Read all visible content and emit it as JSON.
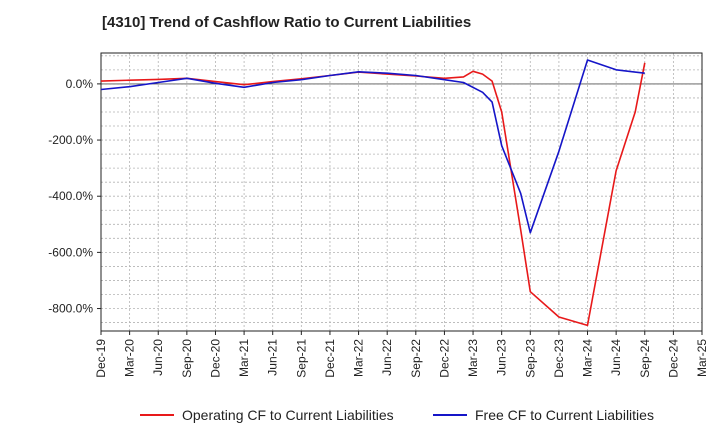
{
  "chart_data": {
    "type": "line",
    "title": "[4310]  Trend of Cashflow Ratio to Current Liabilities",
    "xlabel": "",
    "ylabel": "",
    "x_ticks": [
      "Dec-19",
      "Mar-20",
      "Jun-20",
      "Sep-20",
      "Dec-20",
      "Mar-21",
      "Jun-21",
      "Sep-21",
      "Dec-21",
      "Mar-22",
      "Jun-22",
      "Sep-22",
      "Dec-22",
      "Mar-23",
      "Jun-23",
      "Sep-23",
      "Dec-23",
      "Mar-24",
      "Jun-24",
      "Sep-24",
      "Dec-24",
      "Mar-25"
    ],
    "y_ticks": [
      {
        "value": 0,
        "label": "0.0%"
      },
      {
        "value": -200,
        "label": "-200.0%"
      },
      {
        "value": -400,
        "label": "-400.0%"
      },
      {
        "value": -600,
        "label": "-600.0%"
      },
      {
        "value": -800,
        "label": "-800.0%"
      }
    ],
    "ylim": [
      -880,
      110
    ],
    "grid": true,
    "legend_position": "bottom",
    "series": [
      {
        "name": "Operating CF to Current Liabilities",
        "color": "#e8191a",
        "points": [
          [
            "Dec-19",
            10
          ],
          [
            "Mar-20",
            13
          ],
          [
            "Jun-20",
            16
          ],
          [
            "Sep-20",
            20
          ],
          [
            "Dec-20",
            8
          ],
          [
            "Mar-21",
            -3
          ],
          [
            "Jun-21",
            8
          ],
          [
            "Sep-21",
            18
          ],
          [
            "Dec-21",
            30
          ],
          [
            "Mar-22",
            42
          ],
          [
            "Jun-22",
            35
          ],
          [
            "Sep-22",
            28
          ],
          [
            "Dec-22",
            20
          ],
          [
            "Feb-23",
            25
          ],
          [
            "Mar-23",
            45
          ],
          [
            "Apr-23",
            35
          ],
          [
            "May-23",
            10
          ],
          [
            "Jun-23",
            -100
          ],
          [
            "Aug-23",
            -520
          ],
          [
            "Sep-23",
            -740
          ],
          [
            "Dec-23",
            -830
          ],
          [
            "Mar-24",
            -860
          ],
          [
            "Jun-24",
            -310
          ],
          [
            "Aug-24",
            -100
          ],
          [
            "Sep-24",
            75
          ]
        ]
      },
      {
        "name": "Free CF to Current Liabilities",
        "color": "#1515c8",
        "points": [
          [
            "Dec-19",
            -20
          ],
          [
            "Mar-20",
            -10
          ],
          [
            "Jun-20",
            5
          ],
          [
            "Sep-20",
            20
          ],
          [
            "Dec-20",
            2
          ],
          [
            "Mar-21",
            -12
          ],
          [
            "Jun-21",
            5
          ],
          [
            "Sep-21",
            15
          ],
          [
            "Dec-21",
            30
          ],
          [
            "Mar-22",
            43
          ],
          [
            "Jun-22",
            38
          ],
          [
            "Sep-22",
            30
          ],
          [
            "Dec-22",
            15
          ],
          [
            "Feb-23",
            5
          ],
          [
            "Apr-23",
            -30
          ],
          [
            "May-23",
            -65
          ],
          [
            "Jun-23",
            -220
          ],
          [
            "Aug-23",
            -390
          ],
          [
            "Sep-23",
            -530
          ],
          [
            "Dec-23",
            -240
          ],
          [
            "Mar-24",
            85
          ],
          [
            "Jun-24",
            50
          ],
          [
            "Sep-24",
            38
          ]
        ]
      }
    ]
  }
}
